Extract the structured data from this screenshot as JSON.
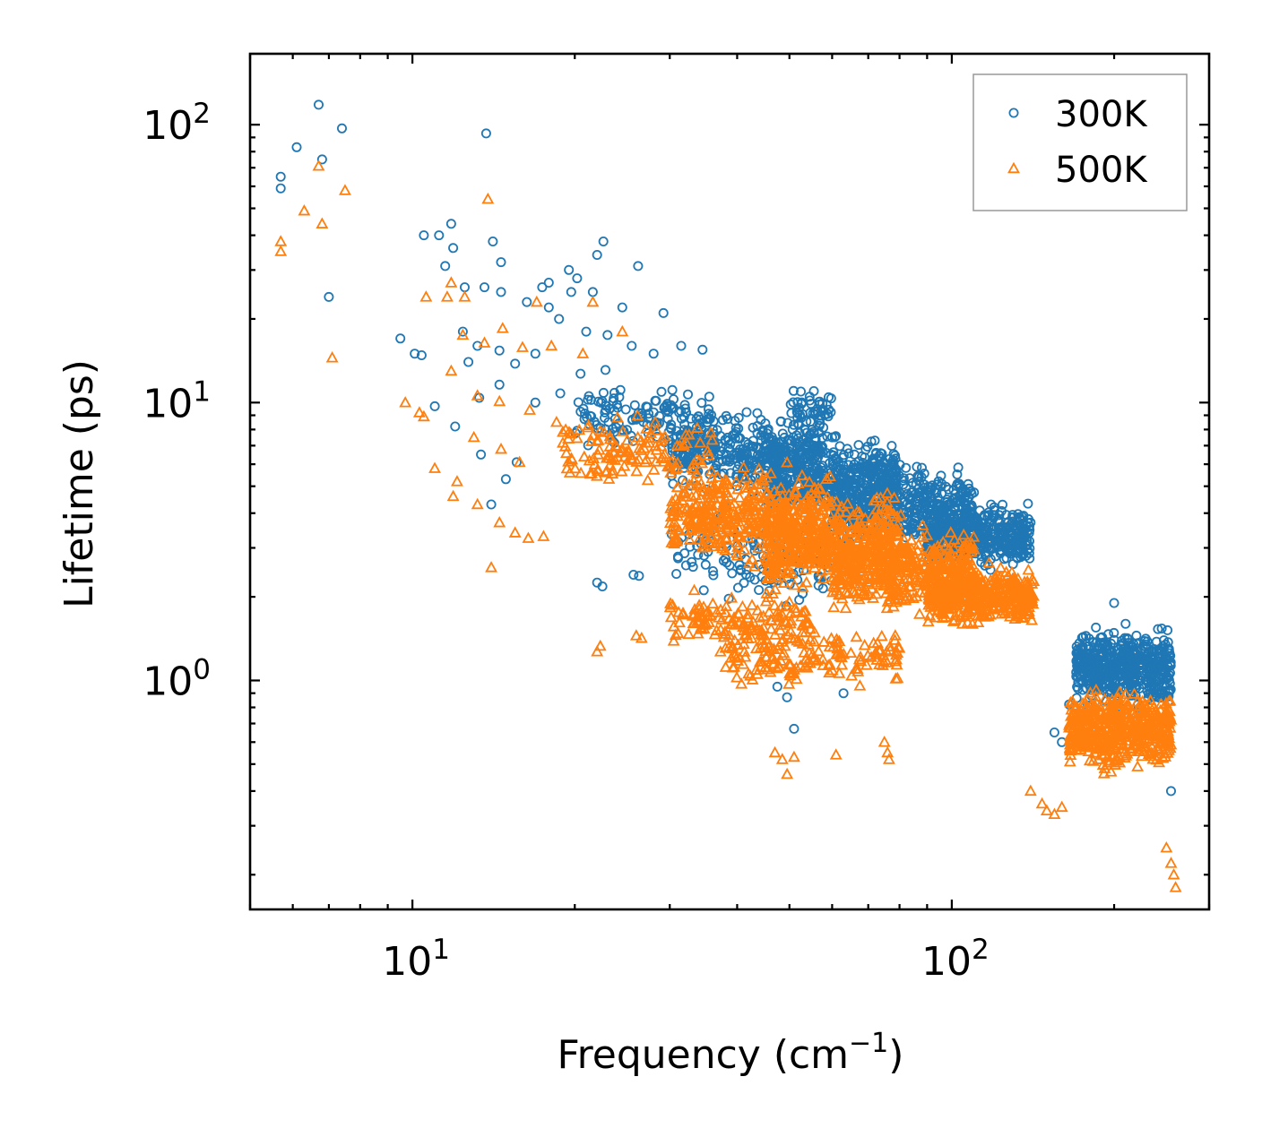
{
  "chart_data": {
    "type": "scatter",
    "xscale": "log",
    "yscale": "log",
    "xlabel": "Frequency (cm",
    "xlabel_sup": "−1",
    "xlabel_end": ")",
    "ylabel": "Lifetime (ps)",
    "xlim": [
      5,
      300
    ],
    "ylim": [
      0.15,
      180
    ],
    "xticks": [
      {
        "base": "10",
        "exp": "1",
        "value": 10
      },
      {
        "base": "10",
        "exp": "2",
        "value": 100
      }
    ],
    "yticks": [
      {
        "base": "10",
        "exp": "0",
        "value": 1
      },
      {
        "base": "10",
        "exp": "1",
        "value": 10
      },
      {
        "base": "10",
        "exp": "2",
        "value": 100
      }
    ],
    "legend_position": "top-right",
    "series": [
      {
        "name": "300K",
        "marker": "circle",
        "color": "#1f77b4",
        "points": [
          [
            6.7,
            118
          ],
          [
            6.1,
            83
          ],
          [
            7.4,
            97
          ],
          [
            6.8,
            75
          ],
          [
            5.7,
            65
          ],
          [
            5.7,
            59
          ],
          [
            7.0,
            24
          ],
          [
            13.7,
            93
          ],
          [
            10.5,
            40
          ],
          [
            11.2,
            40
          ],
          [
            11.8,
            44
          ],
          [
            11.9,
            36
          ],
          [
            14.1,
            38
          ],
          [
            14.6,
            32
          ],
          [
            11.5,
            31
          ],
          [
            12.5,
            26
          ],
          [
            13.6,
            26
          ],
          [
            14.6,
            25
          ],
          [
            16.3,
            23
          ],
          [
            17.4,
            26
          ],
          [
            17.9,
            27
          ],
          [
            19.5,
            30
          ],
          [
            20.2,
            28
          ],
          [
            22.6,
            38
          ],
          [
            22.0,
            34
          ],
          [
            26.2,
            31
          ],
          [
            19.7,
            25
          ],
          [
            21.6,
            25
          ],
          [
            24.5,
            22
          ],
          [
            17.9,
            22
          ],
          [
            18.7,
            20
          ],
          [
            12.4,
            18
          ],
          [
            9.5,
            17
          ],
          [
            10.1,
            15
          ],
          [
            10.4,
            14.8
          ],
          [
            12.7,
            14
          ],
          [
            13.2,
            16
          ],
          [
            14.5,
            15.4
          ],
          [
            15.5,
            13.8
          ],
          [
            16.9,
            15
          ],
          [
            29.2,
            21
          ],
          [
            21.0,
            18
          ],
          [
            23.0,
            17.5
          ],
          [
            25.5,
            16
          ],
          [
            28.0,
            15
          ],
          [
            31.5,
            16
          ],
          [
            34.5,
            15.5
          ],
          [
            11.0,
            9.7
          ],
          [
            13.3,
            10.4
          ],
          [
            14.5,
            11.6
          ],
          [
            16.9,
            10.0
          ],
          [
            18.8,
            10.8
          ],
          [
            20.5,
            12.7
          ],
          [
            22.8,
            13.1
          ],
          [
            24.3,
            11.1
          ],
          [
            12.0,
            8.2
          ],
          [
            13.4,
            6.5
          ],
          [
            15.6,
            6.1
          ],
          [
            14.9,
            5.3
          ],
          [
            14.0,
            4.3
          ],
          [
            22.0,
            2.25
          ],
          [
            22.5,
            2.18
          ],
          [
            25.7,
            2.4
          ],
          [
            26.3,
            2.38
          ],
          [
            47.5,
            0.95
          ],
          [
            49.5,
            0.87
          ],
          [
            51,
            0.67
          ],
          [
            63,
            0.9
          ],
          [
            54.5,
            10.5
          ],
          [
            55.5,
            11
          ],
          [
            60,
            7.5
          ],
          [
            66,
            6.5
          ],
          [
            72,
            7.3
          ],
          [
            87,
            5.2
          ],
          [
            105,
            4.2
          ],
          [
            120,
            4.1
          ],
          [
            140,
            3.7
          ],
          [
            155,
            0.65
          ],
          [
            160,
            0.6
          ],
          [
            165,
            0.82
          ],
          [
            175,
            1.3
          ],
          [
            185,
            1.55
          ],
          [
            200,
            1.9
          ],
          [
            210,
            1.6
          ],
          [
            220,
            1.45
          ],
          [
            230,
            1.2
          ],
          [
            240,
            0.9
          ],
          [
            250,
            0.6
          ],
          [
            255,
            0.4
          ]
        ],
        "clouds": [
          {
            "x": [
              20,
              36
            ],
            "y": [
              6.5,
              12
            ],
            "n": 130
          },
          {
            "x": [
              30,
              58
            ],
            "y": [
              4.5,
              10
            ],
            "n": 380
          },
          {
            "x": [
              45,
              80
            ],
            "y": [
              3.5,
              8
            ],
            "n": 420
          },
          {
            "x": [
              60,
              110
            ],
            "y": [
              2.8,
              6.5
            ],
            "n": 460
          },
          {
            "x": [
              90,
              140
            ],
            "y": [
              2.4,
              4.6
            ],
            "n": 420
          },
          {
            "x": [
              30,
              60
            ],
            "y": [
              1.6,
              4.5
            ],
            "n": 120
          },
          {
            "x": [
              50,
              60
            ],
            "y": [
              8,
              11.5
            ],
            "n": 40
          },
          {
            "x": [
              170,
              255
            ],
            "y": [
              0.75,
              1.65
            ],
            "n": 540
          }
        ]
      },
      {
        "name": "500K",
        "marker": "triangle",
        "color": "#ff7f0e",
        "points": [
          [
            6.7,
            71
          ],
          [
            7.5,
            58
          ],
          [
            6.3,
            49
          ],
          [
            6.8,
            44
          ],
          [
            5.7,
            38
          ],
          [
            5.7,
            35
          ],
          [
            7.1,
            14.5
          ],
          [
            13.8,
            54
          ],
          [
            11.8,
            27
          ],
          [
            10.6,
            24
          ],
          [
            11.6,
            24
          ],
          [
            12.5,
            24
          ],
          [
            17.0,
            23
          ],
          [
            21.6,
            23
          ],
          [
            24.5,
            18
          ],
          [
            14.7,
            18.5
          ],
          [
            12.4,
            17.5
          ],
          [
            13.6,
            16.4
          ],
          [
            16.0,
            15.8
          ],
          [
            18.1,
            16
          ],
          [
            20.7,
            15
          ],
          [
            11.8,
            13
          ],
          [
            9.7,
            10
          ],
          [
            10.3,
            9.2
          ],
          [
            10.5,
            8.9
          ],
          [
            11.0,
            5.8
          ],
          [
            12.1,
            5.2
          ],
          [
            13.2,
            10.6
          ],
          [
            14.5,
            10.1
          ],
          [
            16.5,
            9.4
          ],
          [
            18.5,
            8.5
          ],
          [
            13.0,
            7.5
          ],
          [
            14.6,
            6.8
          ],
          [
            15.8,
            6.1
          ],
          [
            11.9,
            4.6
          ],
          [
            13.2,
            4.3
          ],
          [
            14.5,
            3.7
          ],
          [
            15.5,
            3.4
          ],
          [
            16.4,
            3.25
          ],
          [
            17.5,
            3.3
          ],
          [
            14.0,
            2.55
          ],
          [
            22.3,
            1.33
          ],
          [
            22.0,
            1.27
          ],
          [
            26.0,
            1.45
          ],
          [
            26.6,
            1.42
          ],
          [
            47,
            0.55
          ],
          [
            48.5,
            0.52
          ],
          [
            49.5,
            0.46
          ],
          [
            51,
            0.53
          ],
          [
            61,
            0.54
          ],
          [
            75,
            0.6
          ],
          [
            76,
            0.55
          ],
          [
            76.5,
            0.52
          ],
          [
            140,
            0.4
          ],
          [
            147,
            0.36
          ],
          [
            150,
            0.34
          ],
          [
            155,
            0.33
          ],
          [
            160,
            0.35
          ],
          [
            250,
            0.25
          ],
          [
            255,
            0.22
          ],
          [
            258,
            0.2
          ],
          [
            260,
            0.18
          ]
        ],
        "clouds": [
          {
            "x": [
              19,
              36
            ],
            "y": [
              4.5,
              9.5
            ],
            "n": 130
          },
          {
            "x": [
              30,
              60
            ],
            "y": [
              2.4,
              6.5
            ],
            "n": 420
          },
          {
            "x": [
              45,
              80
            ],
            "y": [
              1.9,
              5.0
            ],
            "n": 440
          },
          {
            "x": [
              60,
              110
            ],
            "y": [
              1.6,
              4.0
            ],
            "n": 460
          },
          {
            "x": [
              90,
              142
            ],
            "y": [
              1.5,
              2.8
            ],
            "n": 420
          },
          {
            "x": [
              30,
              55
            ],
            "y": [
              1.2,
              2.2
            ],
            "n": 140
          },
          {
            "x": [
              38,
              80
            ],
            "y": [
              0.9,
              1.6
            ],
            "n": 160
          },
          {
            "x": [
              165,
              255
            ],
            "y": [
              0.45,
              1.0
            ],
            "n": 520
          }
        ]
      }
    ]
  }
}
